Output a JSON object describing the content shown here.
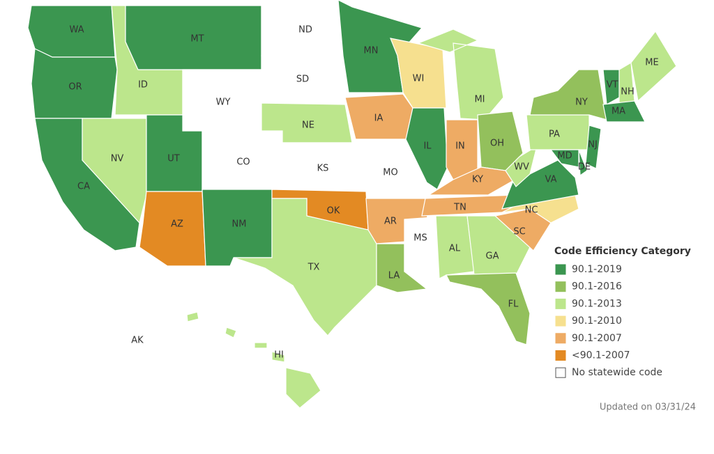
{
  "legend": {
    "title": "Code Efficiency Category",
    "items": [
      {
        "label": "90.1-2019",
        "color": "#3b9650"
      },
      {
        "label": "90.1-2016",
        "color": "#93c05c"
      },
      {
        "label": "90.1-2013",
        "color": "#bce68c"
      },
      {
        "label": "90.1-2010",
        "color": "#f6e08f"
      },
      {
        "label": "90.1-2007",
        "color": "#eeab64"
      },
      {
        "label": "<90.1-2007",
        "color": "#e38a23"
      },
      {
        "label": "No statewide code",
        "color": "#ffffff"
      }
    ]
  },
  "states": [
    {
      "label": "WA",
      "category": "90.1-2019"
    },
    {
      "label": "OR",
      "category": "90.1-2019"
    },
    {
      "label": "CA",
      "category": "90.1-2019"
    },
    {
      "label": "NV",
      "category": "90.1-2013"
    },
    {
      "label": "ID",
      "category": "90.1-2013"
    },
    {
      "label": "MT",
      "category": "90.1-2019"
    },
    {
      "label": "WY",
      "category": "No statewide code"
    },
    {
      "label": "UT",
      "category": "90.1-2019"
    },
    {
      "label": "CO",
      "category": "No statewide code"
    },
    {
      "label": "AZ",
      "category": "<90.1-2007"
    },
    {
      "label": "NM",
      "category": "90.1-2019"
    },
    {
      "label": "ND",
      "category": "No statewide code"
    },
    {
      "label": "SD",
      "category": "No statewide code"
    },
    {
      "label": "NE",
      "category": "90.1-2013"
    },
    {
      "label": "KS",
      "category": "No statewide code"
    },
    {
      "label": "OK",
      "category": "<90.1-2007"
    },
    {
      "label": "TX",
      "category": "90.1-2013"
    },
    {
      "label": "MN",
      "category": "90.1-2019"
    },
    {
      "label": "IA",
      "category": "90.1-2007"
    },
    {
      "label": "MO",
      "category": "No statewide code"
    },
    {
      "label": "AR",
      "category": "90.1-2007"
    },
    {
      "label": "LA",
      "category": "90.1-2016"
    },
    {
      "label": "MS",
      "category": "No statewide code"
    },
    {
      "label": "WI",
      "category": "90.1-2010"
    },
    {
      "label": "IL",
      "category": "90.1-2019"
    },
    {
      "label": "MI",
      "category": "90.1-2013"
    },
    {
      "label": "IN",
      "category": "90.1-2007"
    },
    {
      "label": "OH",
      "category": "90.1-2016"
    },
    {
      "label": "KY",
      "category": "90.1-2007"
    },
    {
      "label": "TN",
      "category": "90.1-2007"
    },
    {
      "label": "AL",
      "category": "90.1-2013"
    },
    {
      "label": "GA",
      "category": "90.1-2013"
    },
    {
      "label": "FL",
      "category": "90.1-2016"
    },
    {
      "label": "SC",
      "category": "90.1-2007"
    },
    {
      "label": "NC",
      "category": "90.1-2010"
    },
    {
      "label": "VA",
      "category": "90.1-2019"
    },
    {
      "label": "WV",
      "category": "90.1-2013"
    },
    {
      "label": "PA",
      "category": "90.1-2013"
    },
    {
      "label": "NY",
      "category": "90.1-2016"
    },
    {
      "label": "MD",
      "category": "90.1-2019"
    },
    {
      "label": "DE",
      "category": "90.1-2019"
    },
    {
      "label": "NJ",
      "category": "90.1-2019"
    },
    {
      "label": "VT",
      "category": "90.1-2019"
    },
    {
      "label": "NH",
      "category": "90.1-2013"
    },
    {
      "label": "ME",
      "category": "90.1-2013"
    },
    {
      "label": "MA",
      "category": "90.1-2019"
    },
    {
      "label": "AK",
      "category": "No statewide code"
    },
    {
      "label": "HI",
      "category": "90.1-2013"
    }
  ],
  "updated": "Updated on 03/31/24"
}
